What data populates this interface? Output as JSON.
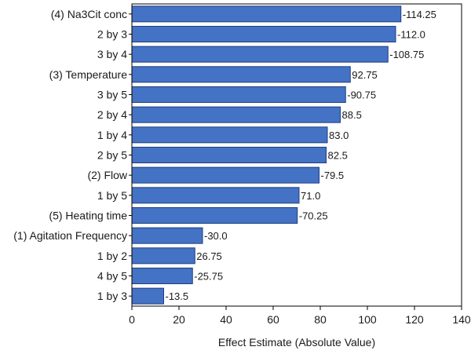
{
  "chart_data": {
    "type": "bar",
    "orientation": "horizontal",
    "categories": [
      "(4) Na3Cit conc",
      "2 by 3",
      "3 by 4",
      "(3) Temperature",
      "3 by 5",
      "2 by 4",
      "1 by 4",
      "2 by 5",
      "(2) Flow",
      "1 by 5",
      "(5) Heating time",
      "(1) Agitation Frequency",
      "1 by 2",
      "4 by 5",
      "1 by 3"
    ],
    "values": [
      114.25,
      112.0,
      108.75,
      92.75,
      90.75,
      88.5,
      83.0,
      82.5,
      79.5,
      71.0,
      70.25,
      30.0,
      26.75,
      25.75,
      13.5
    ],
    "value_labels": [
      "-114.25",
      "-112.0",
      "-108.75",
      "92.75",
      "-90.75",
      "88.5",
      "83.0",
      "82.5",
      "-79.5",
      "71.0",
      "-70.25",
      "-30.0",
      "26.75",
      "-25.75",
      "-13.5"
    ],
    "title": "",
    "xlabel": "Effect Estimate (Absolute Value)",
    "ylabel": "",
    "xlim": [
      0,
      140
    ],
    "xticks": [
      0,
      20,
      40,
      60,
      80,
      100,
      120,
      140
    ],
    "grid": false,
    "legend": "none",
    "colors": {
      "bar_fill": "#4472c4",
      "bar_stroke": "#1f3f80",
      "axis": "#000000",
      "text": "#1a1a1a"
    }
  }
}
